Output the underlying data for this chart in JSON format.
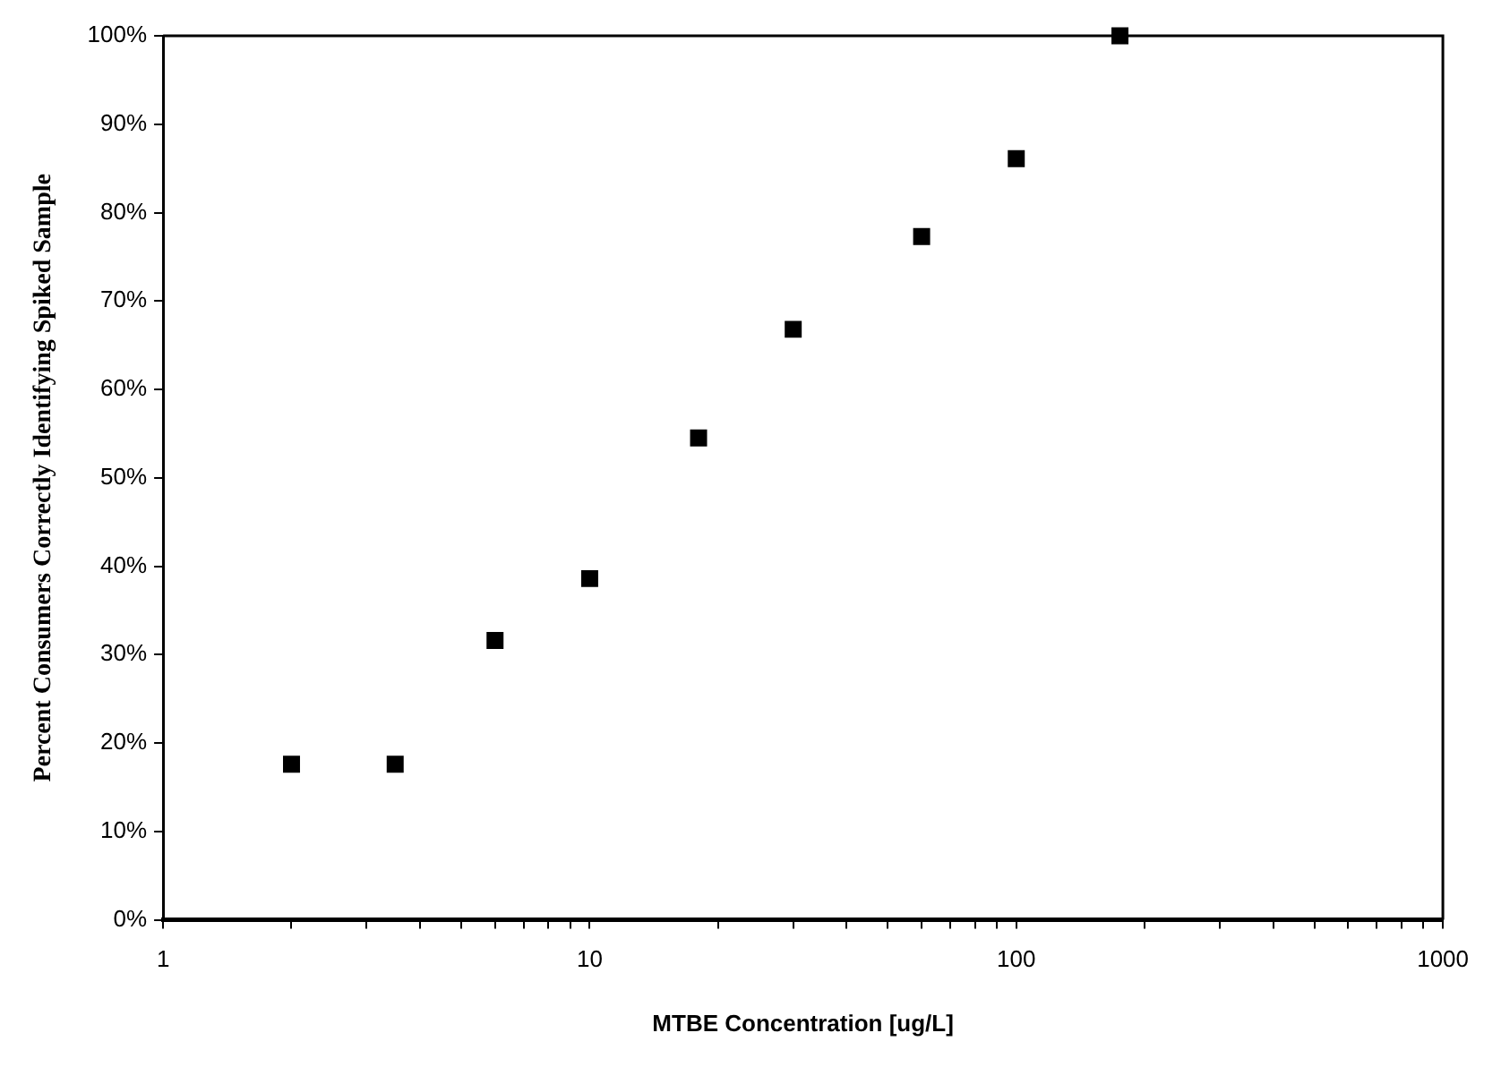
{
  "chart_data": {
    "type": "scatter",
    "xlabel": "MTBE Concentration [ug/L]",
    "ylabel": "Percent Consumers Correctly Identifying Spiked Sample",
    "log": "x",
    "grid": false,
    "marker": "square",
    "x": [
      2,
      3.5,
      6,
      10,
      18,
      30,
      60,
      100,
      175
    ],
    "series": [
      {
        "color": "#000000",
        "values": [
          17.6,
          17.6,
          31.6,
          38.6,
          54.5,
          66.8,
          77.3,
          86.1,
          100
        ]
      }
    ],
    "xlim": [
      1,
      1000
    ],
    "xticks": [
      1,
      {
        "value": 2,
        "label": null
      },
      {
        "value": 3,
        "label": null
      },
      {
        "value": 4,
        "label": null
      },
      {
        "value": 5,
        "label": null
      },
      {
        "value": 6,
        "label": null
      },
      {
        "value": 7,
        "label": null
      },
      {
        "value": 8,
        "label": null
      },
      {
        "value": 9,
        "label": null
      },
      10,
      {
        "value": 20,
        "label": null
      },
      {
        "value": 30,
        "label": null
      },
      {
        "value": 40,
        "label": null
      },
      {
        "value": 50,
        "label": null
      },
      {
        "value": 60,
        "label": null
      },
      {
        "value": 70,
        "label": null
      },
      {
        "value": 80,
        "label": null
      },
      {
        "value": 90,
        "label": null
      },
      100,
      {
        "value": 200,
        "label": null
      },
      {
        "value": 300,
        "label": null
      },
      {
        "value": 400,
        "label": null
      },
      {
        "value": 500,
        "label": null
      },
      {
        "value": 600,
        "label": null
      },
      {
        "value": 700,
        "label": null
      },
      {
        "value": 800,
        "label": null
      },
      {
        "value": 900,
        "label": null
      },
      1000
    ],
    "ylim": [
      0,
      100
    ],
    "yticks": [
      {
        "value": 0,
        "label": "0%"
      },
      {
        "value": 10,
        "label": "10%"
      },
      {
        "value": 20,
        "label": "20%"
      },
      {
        "value": 30,
        "label": "30%"
      },
      {
        "value": 40,
        "label": "40%"
      },
      {
        "value": 50,
        "label": "50%"
      },
      {
        "value": 60,
        "label": "60%"
      },
      {
        "value": 70,
        "label": "70%"
      },
      {
        "value": 80,
        "label": "80%"
      },
      {
        "value": 90,
        "label": "90%"
      },
      {
        "value": 100,
        "label": "100%"
      }
    ]
  }
}
